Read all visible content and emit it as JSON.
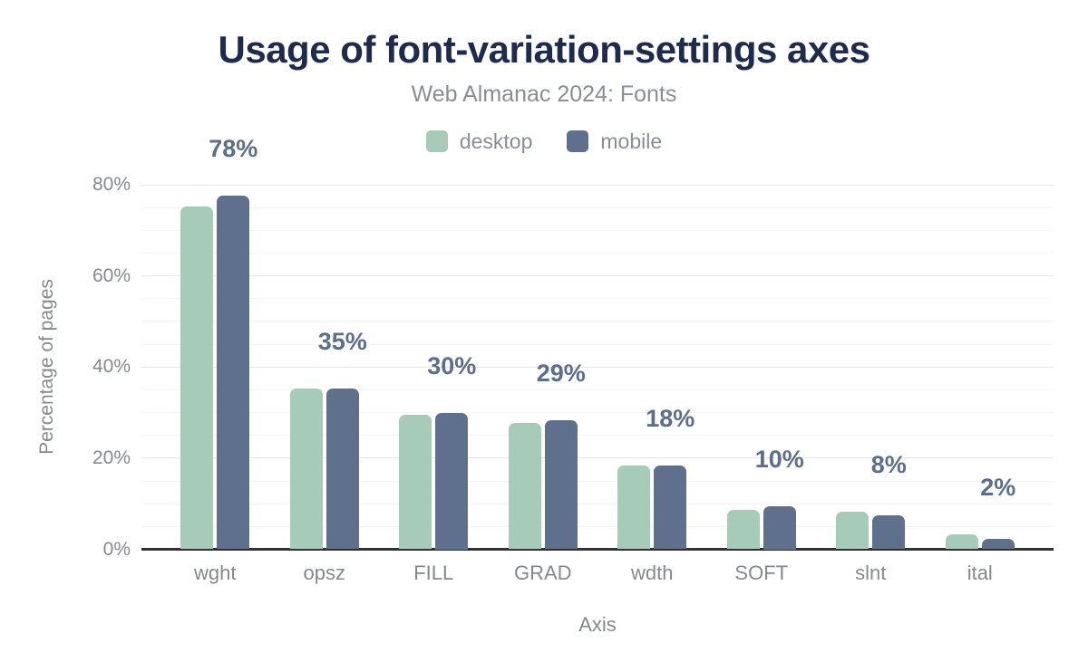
{
  "chart_data": {
    "type": "bar",
    "title": "Usage of font-variation-settings axes",
    "subtitle": "Web Almanac 2024: Fonts",
    "xlabel": "Axis",
    "ylabel": "Percentage of pages",
    "categories": [
      "wght",
      "opsz",
      "FILL",
      "GRAD",
      "wdth",
      "SOFT",
      "slnt",
      "ital"
    ],
    "series": [
      {
        "name": "desktop",
        "color": "#a6cbb8",
        "values": [
          75.2,
          35.2,
          29.6,
          27.7,
          18.3,
          8.6,
          8.3,
          3.2
        ]
      },
      {
        "name": "mobile",
        "color": "#5f708c",
        "values": [
          77.6,
          35.2,
          30.0,
          28.4,
          18.4,
          9.5,
          7.4,
          2.3
        ]
      }
    ],
    "bar_labels": [
      "78%",
      "35%",
      "30%",
      "29%",
      "18%",
      "10%",
      "8%",
      "2%"
    ],
    "yticks": [
      {
        "value": 0,
        "label": "0%"
      },
      {
        "value": 20,
        "label": "20%"
      },
      {
        "value": 40,
        "label": "40%"
      },
      {
        "value": 60,
        "label": "60%"
      },
      {
        "value": 80,
        "label": "80%"
      }
    ],
    "ylim": [
      0,
      80
    ],
    "grid": {
      "minor_step": 5,
      "major_step": 20,
      "gridlines": "on"
    },
    "legend_position": "top",
    "colors": {
      "title": "#1f2b4e",
      "subtitle": "#8a8d94",
      "tick": "#85888f",
      "data_label": "#5c6d8d",
      "axis_line": "#313131",
      "grid_major": "#e7e8ea",
      "grid_minor": "#f4f5f6",
      "background": "#ffffff"
    }
  }
}
